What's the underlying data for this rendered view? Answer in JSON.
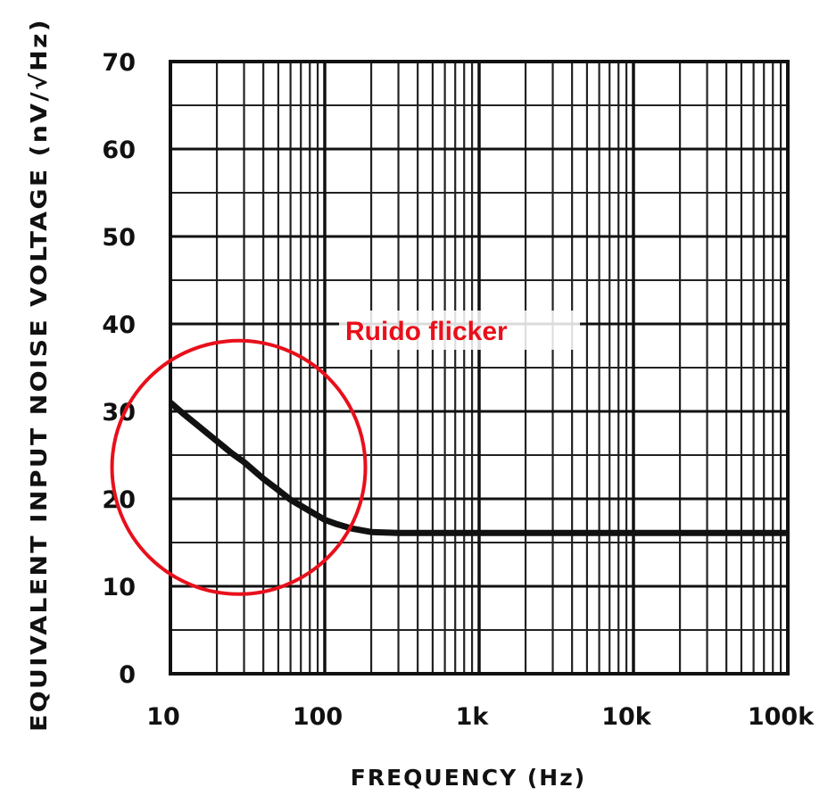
{
  "chart_data": {
    "type": "line",
    "xlabel": "FREQUENCY (Hz)",
    "ylabel": "EQUIVALENT INPUT NOISE VOLTAGE (nV/√Hz)",
    "xscale": "log",
    "xlim": [
      10,
      100000
    ],
    "ylim": [
      0,
      70
    ],
    "grid": true,
    "x_ticks": [
      {
        "value": 10,
        "label": "10"
      },
      {
        "value": 100,
        "label": "100"
      },
      {
        "value": 1000,
        "label": "1k"
      },
      {
        "value": 10000,
        "label": "10k"
      },
      {
        "value": 100000,
        "label": "100k"
      }
    ],
    "y_ticks": [
      {
        "value": 0,
        "label": "0"
      },
      {
        "value": 10,
        "label": "10"
      },
      {
        "value": 20,
        "label": "20"
      },
      {
        "value": 30,
        "label": "30"
      },
      {
        "value": 40,
        "label": "40"
      },
      {
        "value": 50,
        "label": "50"
      },
      {
        "value": 60,
        "label": "60"
      },
      {
        "value": 70,
        "label": "70"
      }
    ],
    "series": [
      {
        "color": "#111111",
        "x": [
          10,
          12,
          15,
          20,
          25,
          30,
          40,
          50,
          60,
          70,
          80,
          100,
          120,
          150,
          200,
          300,
          500,
          1000,
          10000,
          100000
        ],
        "y": [
          31,
          29.8,
          28.4,
          26.6,
          25.2,
          24.2,
          22.3,
          21,
          19.9,
          19.2,
          18.6,
          17.6,
          17.1,
          16.6,
          16.2,
          16.1,
          16.1,
          16.1,
          16.1,
          16.1
        ]
      }
    ],
    "annotations": [
      {
        "text": "Ruido flicker",
        "color": "#e8101b",
        "shape": "circle",
        "center": {
          "x": 30,
          "y": 24
        }
      }
    ]
  }
}
